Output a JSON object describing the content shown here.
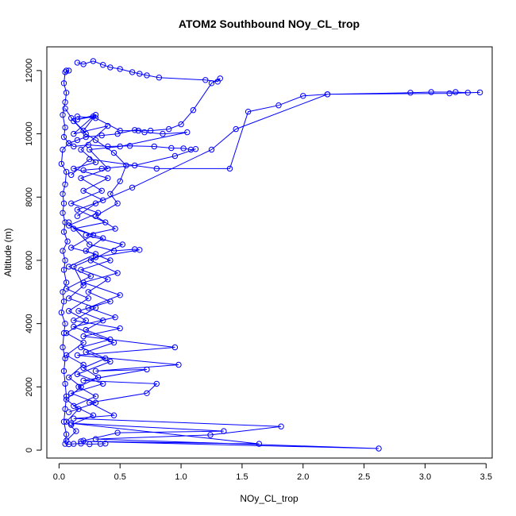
{
  "chart_data": {
    "type": "line",
    "title": "ATOM2 Southbound NOy_CL_trop",
    "xlabel": "NOy_CL_trop",
    "ylabel": "Altitude (m)",
    "xlim": [
      -0.1,
      3.55
    ],
    "ylim": [
      -250,
      12750
    ],
    "x_ticks": [
      0.0,
      0.5,
      1.0,
      1.5,
      2.0,
      2.5,
      3.0,
      3.5
    ],
    "x_tick_labels": [
      "0.0",
      "0.5",
      "1.0",
      "1.5",
      "2.0",
      "2.5",
      "3.0",
      "3.5"
    ],
    "y_ticks": [
      0,
      2000,
      4000,
      6000,
      8000,
      10000,
      12000
    ],
    "y_tick_labels": [
      "0",
      "2000",
      "4000",
      "6000",
      "8000",
      "10000",
      "12000"
    ],
    "grid": false,
    "legend": "none",
    "series": [
      {
        "color": "#0000ff",
        "marker": "open-circle",
        "points": [
          [
            0.06,
            12000
          ],
          [
            0.08,
            12000
          ],
          [
            0.05,
            11950
          ],
          [
            0.04,
            11600
          ],
          [
            0.06,
            11300
          ],
          [
            0.05,
            11000
          ],
          [
            0.03,
            10600
          ],
          [
            0.05,
            10200
          ],
          [
            0.04,
            9900
          ],
          [
            0.08,
            9700
          ],
          [
            0.03,
            9500
          ],
          [
            0.02,
            9050
          ],
          [
            0.06,
            8800
          ],
          [
            0.05,
            8400
          ],
          [
            0.03,
            8100
          ],
          [
            0.04,
            7800
          ],
          [
            0.03,
            7500
          ],
          [
            0.05,
            7200
          ],
          [
            0.04,
            6900
          ],
          [
            0.07,
            6600
          ],
          [
            0.03,
            6300
          ],
          [
            0.05,
            6000
          ],
          [
            0.04,
            5700
          ],
          [
            0.06,
            5300
          ],
          [
            0.03,
            5000
          ],
          [
            0.04,
            4700
          ],
          [
            0.02,
            4350
          ],
          [
            0.05,
            4000
          ],
          [
            0.04,
            3700
          ],
          [
            0.03,
            3250
          ],
          [
            0.05,
            2900
          ],
          [
            0.04,
            2500
          ],
          [
            0.05,
            2100
          ],
          [
            0.06,
            1700
          ],
          [
            0.05,
            1300
          ],
          [
            0.04,
            900
          ],
          [
            0.06,
            500
          ],
          [
            0.05,
            200
          ],
          [
            0.08,
            190
          ],
          [
            0.12,
            200
          ],
          [
            0.18,
            210
          ],
          [
            0.25,
            190
          ],
          [
            0.34,
            200
          ],
          [
            0.38,
            210
          ]
        ]
      },
      {
        "color": "#0000ff",
        "marker": "open-circle",
        "points": [
          [
            0.15,
            12250
          ],
          [
            0.2,
            12200
          ],
          [
            0.28,
            12300
          ],
          [
            0.36,
            12180
          ],
          [
            0.42,
            12100
          ],
          [
            0.5,
            12050
          ],
          [
            0.6,
            11950
          ],
          [
            0.66,
            11900
          ],
          [
            0.72,
            11850
          ],
          [
            0.82,
            11780
          ],
          [
            1.2,
            11700
          ],
          [
            1.3,
            11650
          ],
          [
            1.32,
            11750
          ],
          [
            1.25,
            11600
          ],
          [
            1.1,
            10750
          ],
          [
            1.0,
            10300
          ],
          [
            0.9,
            10150
          ],
          [
            0.75,
            10100
          ],
          [
            0.62,
            10120
          ],
          [
            0.48,
            10000
          ],
          [
            0.35,
            9950
          ],
          [
            0.22,
            9900
          ],
          [
            0.15,
            9800
          ],
          [
            0.08,
            9700
          ],
          [
            0.12,
            9600
          ],
          [
            0.24,
            9650
          ],
          [
            0.4,
            9600
          ],
          [
            0.58,
            9620
          ],
          [
            0.78,
            9600
          ],
          [
            0.92,
            9550
          ],
          [
            1.02,
            9540
          ],
          [
            1.08,
            9500
          ],
          [
            1.12,
            9520
          ],
          [
            0.95,
            9300
          ],
          [
            0.62,
            9000
          ],
          [
            0.35,
            8900
          ],
          [
            0.2,
            8850
          ]
        ]
      },
      {
        "color": "#0000ff",
        "marker": "open-circle",
        "points": [
          [
            0.1,
            8700
          ],
          [
            0.25,
            9200
          ],
          [
            0.8,
            8900
          ],
          [
            1.4,
            8900
          ],
          [
            1.55,
            10700
          ],
          [
            1.8,
            10900
          ],
          [
            2.0,
            11200
          ],
          [
            2.2,
            11250
          ],
          [
            2.88,
            11300
          ],
          [
            3.05,
            11320
          ],
          [
            3.25,
            11320
          ],
          [
            3.35,
            11300
          ],
          [
            3.45,
            11310
          ],
          [
            3.2,
            11280
          ],
          [
            2.2,
            11250
          ],
          [
            1.45,
            10150
          ],
          [
            1.25,
            9500
          ],
          [
            0.6,
            8300
          ],
          [
            0.3,
            7800
          ],
          [
            0.15,
            7400
          ]
        ]
      },
      {
        "color": "#0000ff",
        "marker": "open-circle",
        "points": [
          [
            0.08,
            7200
          ],
          [
            0.25,
            6500
          ],
          [
            0.45,
            6300
          ],
          [
            0.62,
            6350
          ],
          [
            0.66,
            6330
          ],
          [
            0.3,
            6100
          ],
          [
            0.12,
            5800
          ],
          [
            0.2,
            5200
          ],
          [
            0.08,
            4800
          ],
          [
            0.3,
            4500
          ],
          [
            0.12,
            4100
          ],
          [
            0.5,
            3850
          ],
          [
            0.2,
            3600
          ],
          [
            0.95,
            3250
          ],
          [
            0.15,
            3000
          ],
          [
            0.98,
            2700
          ],
          [
            0.3,
            2500
          ],
          [
            0.72,
            2550
          ],
          [
            0.2,
            2200
          ],
          [
            0.8,
            2100
          ],
          [
            0.72,
            1800
          ],
          [
            0.25,
            1500
          ],
          [
            0.45,
            1100
          ],
          [
            0.12,
            1000
          ],
          [
            1.82,
            750
          ],
          [
            1.24,
            480
          ],
          [
            0.3,
            350
          ],
          [
            2.62,
            50
          ],
          [
            0.18,
            280
          ],
          [
            1.64,
            200
          ],
          [
            0.1,
            850
          ],
          [
            1.35,
            600
          ],
          [
            0.48,
            550
          ],
          [
            0.2,
            300
          ]
        ]
      },
      {
        "color": "#0000ff",
        "marker": "open-circle",
        "points": [
          [
            0.1,
            10500
          ],
          [
            0.2,
            10100
          ],
          [
            0.3,
            10600
          ],
          [
            0.15,
            10450
          ],
          [
            0.28,
            10550
          ],
          [
            0.12,
            10000
          ],
          [
            0.4,
            10250
          ],
          [
            0.18,
            9500
          ],
          [
            0.3,
            9100
          ],
          [
            0.12,
            8900
          ],
          [
            0.4,
            8600
          ],
          [
            0.2,
            8200
          ],
          [
            0.36,
            7900
          ],
          [
            0.15,
            7600
          ],
          [
            0.38,
            7200
          ],
          [
            0.12,
            7000
          ],
          [
            0.36,
            6700
          ],
          [
            0.22,
            6300
          ],
          [
            0.42,
            6000
          ],
          [
            0.18,
            5700
          ],
          [
            0.4,
            5400
          ],
          [
            0.24,
            5000
          ],
          [
            0.42,
            4700
          ],
          [
            0.16,
            4400
          ],
          [
            0.36,
            4100
          ],
          [
            0.22,
            3800
          ],
          [
            0.42,
            3500
          ],
          [
            0.18,
            3250
          ],
          [
            0.38,
            2900
          ],
          [
            0.2,
            2600
          ],
          [
            0.32,
            2300
          ],
          [
            0.16,
            2000
          ],
          [
            0.3,
            1700
          ],
          [
            0.12,
            1400
          ],
          [
            0.28,
            1100
          ],
          [
            0.1,
            800
          ]
        ]
      },
      {
        "color": "#0000ff",
        "marker": "open-circle",
        "points": [
          [
            0.05,
            10800
          ],
          [
            0.12,
            10400
          ],
          [
            0.22,
            10000
          ],
          [
            0.3,
            9800
          ],
          [
            0.45,
            9400
          ],
          [
            0.55,
            9000
          ],
          [
            0.5,
            8500
          ],
          [
            0.42,
            8100
          ],
          [
            0.48,
            7800
          ],
          [
            0.3,
            7400
          ],
          [
            0.46,
            7000
          ],
          [
            0.22,
            6800
          ],
          [
            0.52,
            6500
          ],
          [
            0.26,
            6000
          ],
          [
            0.48,
            5600
          ],
          [
            0.2,
            5300
          ],
          [
            0.5,
            4900
          ],
          [
            0.24,
            4500
          ],
          [
            0.46,
            4200
          ],
          [
            0.12,
            3900
          ],
          [
            0.45,
            3400
          ],
          [
            0.22,
            3100
          ],
          [
            0.42,
            2800
          ],
          [
            0.15,
            2400
          ],
          [
            0.36,
            2100
          ],
          [
            0.1,
            1800
          ],
          [
            0.3,
            1500
          ],
          [
            0.08,
            1200
          ]
        ]
      },
      {
        "color": "#0000ff",
        "marker": "open-circle",
        "points": [
          [
            0.15,
            10550
          ],
          [
            0.3,
            10500
          ],
          [
            0.5,
            10100
          ],
          [
            0.65,
            10100
          ],
          [
            0.7,
            10050
          ],
          [
            0.85,
            10000
          ],
          [
            1.05,
            10050
          ],
          [
            0.5,
            9600
          ],
          [
            0.25,
            9500
          ],
          [
            0.4,
            8900
          ],
          [
            0.18,
            8600
          ],
          [
            0.35,
            8200
          ],
          [
            0.1,
            7800
          ],
          [
            0.32,
            7500
          ],
          [
            0.08,
            7100
          ],
          [
            0.28,
            6800
          ],
          [
            0.1,
            6400
          ],
          [
            0.3,
            6200
          ],
          [
            0.08,
            5800
          ],
          [
            0.26,
            5500
          ],
          [
            0.06,
            5100
          ],
          [
            0.24,
            4800
          ],
          [
            0.08,
            4400
          ],
          [
            0.22,
            4100
          ],
          [
            0.06,
            3700
          ],
          [
            0.2,
            3400
          ],
          [
            0.06,
            3000
          ],
          [
            0.2,
            2700
          ],
          [
            0.08,
            2300
          ],
          [
            0.18,
            2000
          ],
          [
            0.06,
            1600
          ],
          [
            0.16,
            1300
          ],
          [
            0.06,
            900
          ],
          [
            0.14,
            600
          ],
          [
            0.06,
            300
          ]
        ]
      }
    ]
  }
}
